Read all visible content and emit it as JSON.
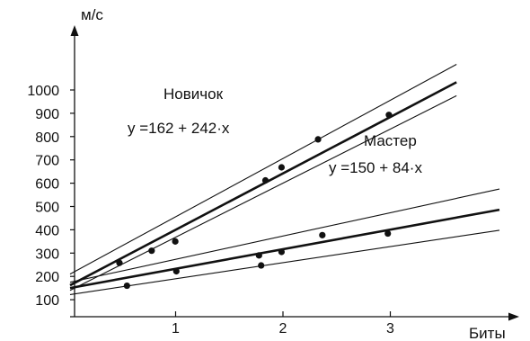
{
  "chart_data": {
    "type": "scatter",
    "title": "",
    "xlabel": "Биты",
    "ylabel": "м/с",
    "xlim": [
      0,
      4
    ],
    "ylim": [
      0,
      1100
    ],
    "x_ticks": [
      1,
      2,
      3
    ],
    "y_ticks": [
      100,
      200,
      300,
      400,
      500,
      600,
      700,
      800,
      900,
      1000
    ],
    "grid": false,
    "series": [
      {
        "name": "Новичок",
        "equation": "y =162 + 242·x",
        "intercept": 162,
        "slope": 242,
        "band": {
          "upper_start": 210,
          "upper_slope": 250,
          "lower_start": 140,
          "lower_slope": 232,
          "x_end": 3.6
        },
        "points": [
          {
            "x": 0.46,
            "y": 258
          },
          {
            "x": 0.76,
            "y": 310
          },
          {
            "x": 0.98,
            "y": 350
          },
          {
            "x": 1.82,
            "y": 612
          },
          {
            "x": 1.97,
            "y": 668
          },
          {
            "x": 2.31,
            "y": 788
          },
          {
            "x": 2.97,
            "y": 893
          }
        ]
      },
      {
        "name": "Мастер",
        "equation": "y =150 + 84·x",
        "intercept": 150,
        "slope": 84,
        "band": {
          "upper_start": 175,
          "upper_slope": 100,
          "lower_start": 122,
          "lower_slope": 69,
          "x_end": 4.0
        },
        "points": [
          {
            "x": 0.53,
            "y": 160
          },
          {
            "x": 0.99,
            "y": 222
          },
          {
            "x": 1.76,
            "y": 290
          },
          {
            "x": 1.78,
            "y": 247
          },
          {
            "x": 1.97,
            "y": 305
          },
          {
            "x": 2.35,
            "y": 377
          },
          {
            "x": 2.96,
            "y": 384
          }
        ]
      }
    ]
  }
}
